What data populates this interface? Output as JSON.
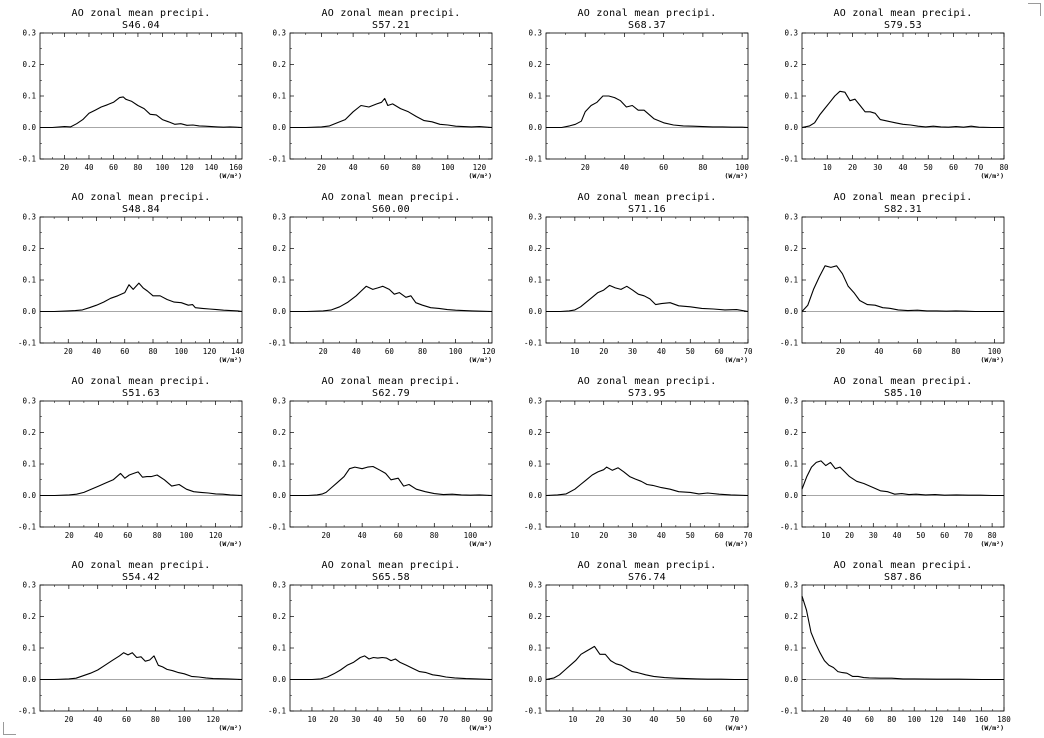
{
  "chart_data": [
    {
      "type": "line",
      "title": "AO zonal mean precipi.",
      "subtitle": "S46.04",
      "unit": "(W/m²)",
      "xlim": [
        0,
        165
      ],
      "ylim": [
        -0.1,
        0.3
      ],
      "xticks": [
        20,
        40,
        60,
        80,
        100,
        120,
        140,
        160
      ],
      "yticks": [
        -0.1,
        0.0,
        0.1,
        0.2,
        0.3
      ],
      "x": [
        0,
        10,
        20,
        25,
        30,
        35,
        40,
        45,
        50,
        55,
        60,
        65,
        68,
        70,
        75,
        80,
        85,
        90,
        95,
        100,
        105,
        110,
        115,
        120,
        125,
        130,
        135,
        140,
        145,
        150,
        155,
        160,
        165
      ],
      "y": [
        0,
        0,
        0.003,
        0.002,
        0.012,
        0.025,
        0.045,
        0.055,
        0.065,
        0.072,
        0.08,
        0.095,
        0.097,
        0.09,
        0.083,
        0.07,
        0.06,
        0.042,
        0.04,
        0.025,
        0.018,
        0.01,
        0.012,
        0.007,
        0.008,
        0.005,
        0.004,
        0.003,
        0.002,
        0.001,
        0.002,
        0.001,
        0
      ]
    },
    {
      "type": "line",
      "title": "AO zonal mean precipi.",
      "subtitle": "S57.21",
      "unit": "(W/m²)",
      "xlim": [
        0,
        128
      ],
      "ylim": [
        -0.1,
        0.3
      ],
      "xticks": [
        20,
        40,
        60,
        80,
        100,
        120
      ],
      "yticks": [
        -0.1,
        0.0,
        0.1,
        0.2,
        0.3
      ],
      "x": [
        0,
        10,
        20,
        25,
        30,
        35,
        40,
        45,
        50,
        55,
        58,
        60,
        62,
        65,
        70,
        75,
        80,
        85,
        90,
        95,
        100,
        105,
        110,
        115,
        120,
        125,
        128
      ],
      "y": [
        0,
        0,
        0.002,
        0.005,
        0.015,
        0.025,
        0.05,
        0.07,
        0.065,
        0.075,
        0.08,
        0.092,
        0.07,
        0.075,
        0.06,
        0.05,
        0.035,
        0.022,
        0.018,
        0.01,
        0.008,
        0.004,
        0.003,
        0.002,
        0.003,
        0.001,
        0
      ]
    },
    {
      "type": "line",
      "title": "AO zonal mean precipi.",
      "subtitle": "S68.37",
      "unit": "(W/m²)",
      "xlim": [
        0,
        103
      ],
      "ylim": [
        -0.1,
        0.3
      ],
      "xticks": [
        20,
        40,
        60,
        80,
        100
      ],
      "yticks": [
        -0.1,
        0.0,
        0.1,
        0.2,
        0.3
      ],
      "x": [
        0,
        8,
        12,
        15,
        18,
        20,
        23,
        26,
        29,
        32,
        35,
        38,
        41,
        44,
        47,
        50,
        55,
        60,
        65,
        70,
        75,
        80,
        85,
        90,
        95,
        100,
        103
      ],
      "y": [
        0,
        0,
        0.005,
        0.01,
        0.02,
        0.05,
        0.07,
        0.08,
        0.1,
        0.1,
        0.095,
        0.085,
        0.065,
        0.07,
        0.055,
        0.055,
        0.028,
        0.015,
        0.008,
        0.005,
        0.004,
        0.003,
        0.002,
        0.002,
        0.001,
        0.001,
        0
      ]
    },
    {
      "type": "line",
      "title": "AO zonal mean precipi.",
      "subtitle": "S79.53",
      "unit": "(W/m²)",
      "xlim": [
        0,
        80
      ],
      "ylim": [
        -0.1,
        0.3
      ],
      "xticks": [
        10,
        20,
        30,
        40,
        50,
        60,
        70,
        80
      ],
      "yticks": [
        -0.1,
        0.0,
        0.1,
        0.2,
        0.3
      ],
      "x": [
        0,
        3,
        5,
        7,
        9,
        11,
        13,
        15,
        17,
        19,
        21,
        23,
        25,
        27,
        29,
        31,
        34,
        37,
        40,
        43,
        46,
        49,
        52,
        55,
        58,
        61,
        64,
        67,
        70,
        75,
        80
      ],
      "y": [
        0,
        0.005,
        0.015,
        0.04,
        0.06,
        0.08,
        0.1,
        0.115,
        0.112,
        0.085,
        0.09,
        0.07,
        0.05,
        0.05,
        0.045,
        0.025,
        0.02,
        0.015,
        0.01,
        0.008,
        0.004,
        0.002,
        0.004,
        0.002,
        0.001,
        0.003,
        0.001,
        0.004,
        0.001,
        0,
        0
      ]
    },
    {
      "type": "line",
      "title": "AO zonal mean precipi.",
      "subtitle": "S48.84",
      "unit": "(W/m²)",
      "xlim": [
        0,
        143
      ],
      "ylim": [
        -0.1,
        0.3
      ],
      "xticks": [
        20,
        40,
        60,
        80,
        100,
        120,
        140
      ],
      "yticks": [
        -0.1,
        0.0,
        0.1,
        0.2,
        0.3
      ],
      "x": [
        0,
        10,
        20,
        25,
        30,
        35,
        40,
        45,
        50,
        55,
        60,
        63,
        66,
        70,
        73,
        76,
        80,
        85,
        90,
        95,
        100,
        105,
        108,
        110,
        115,
        120,
        125,
        130,
        135,
        140,
        143
      ],
      "y": [
        0,
        0,
        0.002,
        0.003,
        0.005,
        0.012,
        0.02,
        0.03,
        0.042,
        0.05,
        0.06,
        0.085,
        0.07,
        0.09,
        0.075,
        0.065,
        0.05,
        0.05,
        0.038,
        0.03,
        0.028,
        0.02,
        0.022,
        0.012,
        0.01,
        0.008,
        0.006,
        0.004,
        0.003,
        0.002,
        0
      ]
    },
    {
      "type": "line",
      "title": "AO zonal mean precipi.",
      "subtitle": "S60.00",
      "unit": "(W/m²)",
      "xlim": [
        0,
        122
      ],
      "ylim": [
        -0.1,
        0.3
      ],
      "xticks": [
        20,
        40,
        60,
        80,
        100,
        120
      ],
      "yticks": [
        -0.1,
        0.0,
        0.1,
        0.2,
        0.3
      ],
      "x": [
        0,
        10,
        20,
        25,
        30,
        35,
        40,
        43,
        46,
        50,
        53,
        56,
        60,
        63,
        66,
        70,
        73,
        76,
        80,
        85,
        90,
        95,
        100,
        105,
        110,
        115,
        122
      ],
      "y": [
        0,
        0,
        0.002,
        0.005,
        0.015,
        0.03,
        0.05,
        0.065,
        0.08,
        0.07,
        0.075,
        0.08,
        0.07,
        0.055,
        0.06,
        0.045,
        0.05,
        0.028,
        0.02,
        0.012,
        0.01,
        0.006,
        0.004,
        0.003,
        0.002,
        0.001,
        0
      ]
    },
    {
      "type": "line",
      "title": "AO zonal mean precipi.",
      "subtitle": "S71.16",
      "unit": "(W/m²)",
      "xlim": [
        0,
        70
      ],
      "ylim": [
        -0.1,
        0.3
      ],
      "xticks": [
        10,
        20,
        30,
        40,
        50,
        60,
        70
      ],
      "yticks": [
        -0.1,
        0.0,
        0.1,
        0.2,
        0.3
      ],
      "x": [
        0,
        5,
        8,
        10,
        12,
        14,
        16,
        18,
        20,
        22,
        24,
        26,
        28,
        30,
        32,
        34,
        36,
        38,
        40,
        43,
        46,
        50,
        54,
        58,
        62,
        66,
        70
      ],
      "y": [
        0,
        0,
        0.002,
        0.005,
        0.015,
        0.03,
        0.045,
        0.06,
        0.068,
        0.083,
        0.075,
        0.07,
        0.08,
        0.068,
        0.055,
        0.05,
        0.04,
        0.022,
        0.025,
        0.028,
        0.018,
        0.015,
        0.01,
        0.008,
        0.005,
        0.006,
        0
      ]
    },
    {
      "type": "line",
      "title": "AO zonal mean precipi.",
      "subtitle": "S82.31",
      "unit": "(W/m²)",
      "xlim": [
        0,
        105
      ],
      "ylim": [
        -0.1,
        0.3
      ],
      "xticks": [
        20,
        40,
        60,
        80,
        100
      ],
      "yticks": [
        -0.1,
        0.0,
        0.1,
        0.2,
        0.3
      ],
      "x": [
        0,
        3,
        6,
        9,
        12,
        15,
        18,
        21,
        24,
        27,
        30,
        34,
        38,
        42,
        46,
        50,
        55,
        60,
        65,
        70,
        75,
        80,
        85,
        90,
        95,
        100,
        105
      ],
      "y": [
        0,
        0.02,
        0.07,
        0.11,
        0.145,
        0.14,
        0.145,
        0.12,
        0.08,
        0.06,
        0.035,
        0.022,
        0.02,
        0.012,
        0.01,
        0.005,
        0.003,
        0.004,
        0.002,
        0.002,
        0.001,
        0.002,
        0.001,
        0,
        0,
        0,
        0
      ]
    },
    {
      "type": "line",
      "title": "AO zonal mean precipi.",
      "subtitle": "S51.63",
      "unit": "(W/m²)",
      "xlim": [
        0,
        138
      ],
      "ylim": [
        -0.1,
        0.3
      ],
      "xticks": [
        20,
        40,
        60,
        80,
        100,
        120
      ],
      "yticks": [
        -0.1,
        0.0,
        0.1,
        0.2,
        0.3
      ],
      "x": [
        0,
        10,
        20,
        25,
        30,
        35,
        40,
        45,
        50,
        55,
        58,
        61,
        64,
        67,
        70,
        73,
        76,
        80,
        85,
        90,
        95,
        100,
        105,
        110,
        115,
        120,
        125,
        130,
        138
      ],
      "y": [
        0,
        0,
        0.002,
        0.004,
        0.01,
        0.02,
        0.03,
        0.04,
        0.05,
        0.07,
        0.055,
        0.065,
        0.07,
        0.075,
        0.058,
        0.06,
        0.06,
        0.065,
        0.05,
        0.03,
        0.035,
        0.02,
        0.012,
        0.01,
        0.008,
        0.005,
        0.004,
        0.002,
        0
      ]
    },
    {
      "type": "line",
      "title": "AO zonal mean precipi.",
      "subtitle": "S62.79",
      "unit": "(W/m²)",
      "xlim": [
        0,
        112
      ],
      "ylim": [
        -0.1,
        0.3
      ],
      "xticks": [
        20,
        40,
        60,
        80,
        100
      ],
      "yticks": [
        -0.1,
        0.0,
        0.1,
        0.2,
        0.3
      ],
      "x": [
        0,
        10,
        15,
        18,
        20,
        23,
        26,
        30,
        33,
        36,
        40,
        43,
        46,
        50,
        53,
        56,
        60,
        63,
        66,
        70,
        75,
        80,
        85,
        90,
        95,
        100,
        105,
        112
      ],
      "y": [
        0,
        0,
        0.002,
        0.005,
        0.01,
        0.025,
        0.04,
        0.06,
        0.085,
        0.09,
        0.085,
        0.09,
        0.092,
        0.08,
        0.07,
        0.05,
        0.055,
        0.03,
        0.035,
        0.02,
        0.012,
        0.006,
        0.003,
        0.004,
        0.002,
        0.001,
        0.002,
        0
      ]
    },
    {
      "type": "line",
      "title": "AO zonal mean precipi.",
      "subtitle": "S73.95",
      "unit": "(W/m²)",
      "xlim": [
        0,
        70
      ],
      "ylim": [
        -0.1,
        0.3
      ],
      "xticks": [
        10,
        20,
        30,
        40,
        50,
        60,
        70
      ],
      "yticks": [
        -0.1,
        0.0,
        0.1,
        0.2,
        0.3
      ],
      "x": [
        0,
        4,
        7,
        10,
        12,
        14,
        16,
        18,
        20,
        21,
        23,
        25,
        27,
        29,
        31,
        33,
        35,
        37,
        40,
        43,
        46,
        50,
        53,
        56,
        60,
        64,
        70
      ],
      "y": [
        0,
        0.002,
        0.005,
        0.02,
        0.035,
        0.05,
        0.065,
        0.075,
        0.082,
        0.09,
        0.08,
        0.088,
        0.075,
        0.06,
        0.052,
        0.045,
        0.035,
        0.032,
        0.025,
        0.02,
        0.012,
        0.01,
        0.005,
        0.008,
        0.004,
        0.002,
        0
      ]
    },
    {
      "type": "line",
      "title": "AO zonal mean precipi.",
      "subtitle": "S85.10",
      "unit": "(W/m²)",
      "xlim": [
        0,
        85
      ],
      "ylim": [
        -0.1,
        0.3
      ],
      "xticks": [
        10,
        20,
        30,
        40,
        50,
        60,
        70,
        80
      ],
      "yticks": [
        -0.1,
        0.0,
        0.1,
        0.2,
        0.3
      ],
      "x": [
        0,
        2,
        4,
        6,
        8,
        10,
        12,
        14,
        16,
        18,
        20,
        23,
        26,
        30,
        33,
        36,
        39,
        42,
        45,
        48,
        52,
        56,
        60,
        65,
        70,
        75,
        80,
        85
      ],
      "y": [
        0.02,
        0.06,
        0.09,
        0.105,
        0.11,
        0.095,
        0.105,
        0.085,
        0.09,
        0.075,
        0.06,
        0.045,
        0.038,
        0.025,
        0.015,
        0.012,
        0.004,
        0.006,
        0.003,
        0.004,
        0.002,
        0.003,
        0.001,
        0.002,
        0.001,
        0.001,
        0,
        0
      ]
    },
    {
      "type": "line",
      "title": "AO zonal mean precipi.",
      "subtitle": "S54.42",
      "unit": "(W/m²)",
      "xlim": [
        0,
        140
      ],
      "ylim": [
        -0.1,
        0.3
      ],
      "xticks": [
        20,
        40,
        60,
        80,
        100,
        120
      ],
      "yticks": [
        -0.1,
        0.0,
        0.1,
        0.2,
        0.3
      ],
      "x": [
        0,
        10,
        20,
        25,
        30,
        35,
        40,
        45,
        50,
        55,
        58,
        61,
        64,
        67,
        70,
        73,
        76,
        79,
        82,
        85,
        88,
        92,
        96,
        100,
        105,
        110,
        115,
        120,
        130,
        140
      ],
      "y": [
        0,
        0,
        0.002,
        0.004,
        0.012,
        0.02,
        0.03,
        0.045,
        0.06,
        0.075,
        0.085,
        0.078,
        0.085,
        0.07,
        0.072,
        0.058,
        0.062,
        0.075,
        0.045,
        0.04,
        0.032,
        0.028,
        0.022,
        0.018,
        0.01,
        0.008,
        0.005,
        0.003,
        0.002,
        0
      ]
    },
    {
      "type": "line",
      "title": "AO zonal mean precipi.",
      "subtitle": "S65.58",
      "unit": "(W/m²)",
      "xlim": [
        0,
        92
      ],
      "ylim": [
        -0.1,
        0.3
      ],
      "xticks": [
        10,
        20,
        30,
        40,
        50,
        60,
        70,
        80,
        90
      ],
      "yticks": [
        -0.1,
        0.0,
        0.1,
        0.2,
        0.3
      ],
      "x": [
        0,
        10,
        14,
        17,
        20,
        23,
        26,
        29,
        32,
        34,
        36,
        38,
        40,
        42,
        44,
        46,
        48,
        50,
        53,
        56,
        59,
        62,
        65,
        68,
        71,
        75,
        80,
        85,
        92
      ],
      "y": [
        0,
        0,
        0.002,
        0.008,
        0.018,
        0.03,
        0.045,
        0.055,
        0.07,
        0.075,
        0.065,
        0.07,
        0.068,
        0.07,
        0.068,
        0.06,
        0.065,
        0.055,
        0.045,
        0.035,
        0.025,
        0.022,
        0.015,
        0.012,
        0.008,
        0.005,
        0.003,
        0.002,
        0
      ]
    },
    {
      "type": "line",
      "title": "AO zonal mean precipi.",
      "subtitle": "S76.74",
      "unit": "(W/m²)",
      "xlim": [
        0,
        75
      ],
      "ylim": [
        -0.1,
        0.3
      ],
      "xticks": [
        10,
        20,
        30,
        40,
        50,
        60,
        70
      ],
      "yticks": [
        -0.1,
        0.0,
        0.1,
        0.2,
        0.3
      ],
      "x": [
        0,
        3,
        5,
        7,
        9,
        11,
        13,
        15,
        17,
        18,
        20,
        22,
        24,
        26,
        28,
        30,
        32,
        34,
        37,
        40,
        44,
        48,
        52,
        56,
        60,
        65,
        70,
        75
      ],
      "y": [
        0,
        0.005,
        0.015,
        0.03,
        0.045,
        0.06,
        0.08,
        0.09,
        0.1,
        0.105,
        0.08,
        0.08,
        0.06,
        0.05,
        0.045,
        0.035,
        0.025,
        0.022,
        0.015,
        0.01,
        0.006,
        0.004,
        0.003,
        0.002,
        0.001,
        0.001,
        0,
        0
      ]
    },
    {
      "type": "line",
      "title": "AO zonal mean precipi.",
      "subtitle": "S87.86",
      "unit": "(W/m²)",
      "xlim": [
        0,
        180
      ],
      "ylim": [
        -0.1,
        0.3
      ],
      "xticks": [
        20,
        40,
        60,
        80,
        100,
        120,
        140,
        160,
        180
      ],
      "yticks": [
        -0.1,
        0.0,
        0.1,
        0.2,
        0.3
      ],
      "x": [
        0,
        4,
        8,
        12,
        16,
        20,
        24,
        28,
        32,
        36,
        40,
        45,
        50,
        55,
        60,
        70,
        80,
        90,
        100,
        120,
        140,
        160,
        180
      ],
      "y": [
        0.265,
        0.22,
        0.15,
        0.115,
        0.085,
        0.06,
        0.045,
        0.038,
        0.025,
        0.022,
        0.02,
        0.01,
        0.01,
        0.006,
        0.005,
        0.004,
        0.004,
        0.002,
        0.002,
        0.001,
        0.001,
        0,
        0
      ]
    }
  ]
}
